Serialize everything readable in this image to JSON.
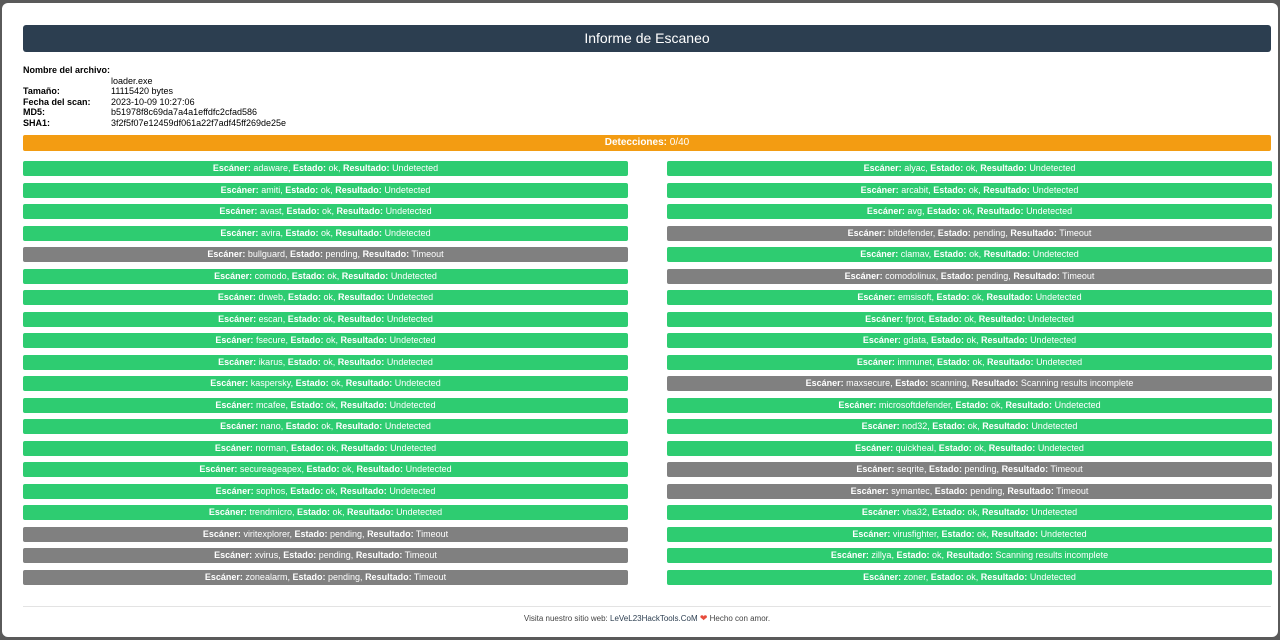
{
  "page": {
    "title": "Informe de Escaneo"
  },
  "file_info": [
    {
      "label": "Nombre del archivo:",
      "value": "loader.exe"
    },
    {
      "label": "Tamaño:",
      "value": "11115420 bytes"
    },
    {
      "label": "Fecha del scan:",
      "value": "2023-10-09 10:27:06"
    },
    {
      "label": "MD5:",
      "value": "b51978f8c69da7a4a1effdfc2cfad586"
    },
    {
      "label": "SHA1:",
      "value": "3f2f5f07e12459df061a22f7adf45ff269de25e"
    }
  ],
  "detections": {
    "label": "Detecciones:",
    "value": "0/40"
  },
  "result_labels": {
    "scanner": "Escáner:",
    "status": "Estado:",
    "result": "Resultado:"
  },
  "results_left": [
    {
      "scanner": "adaware",
      "status": "ok",
      "result": "Undetected"
    },
    {
      "scanner": "amiti",
      "status": "ok",
      "result": "Undetected"
    },
    {
      "scanner": "avast",
      "status": "ok",
      "result": "Undetected"
    },
    {
      "scanner": "avira",
      "status": "ok",
      "result": "Undetected"
    },
    {
      "scanner": "bullguard",
      "status": "pending",
      "result": "Timeout"
    },
    {
      "scanner": "comodo",
      "status": "ok",
      "result": "Undetected"
    },
    {
      "scanner": "drweb",
      "status": "ok",
      "result": "Undetected"
    },
    {
      "scanner": "escan",
      "status": "ok",
      "result": "Undetected"
    },
    {
      "scanner": "fsecure",
      "status": "ok",
      "result": "Undetected"
    },
    {
      "scanner": "ikarus",
      "status": "ok",
      "result": "Undetected"
    },
    {
      "scanner": "kaspersky",
      "status": "ok",
      "result": "Undetected"
    },
    {
      "scanner": "mcafee",
      "status": "ok",
      "result": "Undetected"
    },
    {
      "scanner": "nano",
      "status": "ok",
      "result": "Undetected"
    },
    {
      "scanner": "norman",
      "status": "ok",
      "result": "Undetected"
    },
    {
      "scanner": "secureageapex",
      "status": "ok",
      "result": "Undetected"
    },
    {
      "scanner": "sophos",
      "status": "ok",
      "result": "Undetected"
    },
    {
      "scanner": "trendmicro",
      "status": "ok",
      "result": "Undetected"
    },
    {
      "scanner": "viritexplorer",
      "status": "pending",
      "result": "Timeout"
    },
    {
      "scanner": "xvirus",
      "status": "pending",
      "result": "Timeout"
    },
    {
      "scanner": "zonealarm",
      "status": "pending",
      "result": "Timeout"
    }
  ],
  "results_right": [
    {
      "scanner": "alyac",
      "status": "ok",
      "result": "Undetected"
    },
    {
      "scanner": "arcabit",
      "status": "ok",
      "result": "Undetected"
    },
    {
      "scanner": "avg",
      "status": "ok",
      "result": "Undetected"
    },
    {
      "scanner": "bitdefender",
      "status": "pending",
      "result": "Timeout"
    },
    {
      "scanner": "clamav",
      "status": "ok",
      "result": "Undetected"
    },
    {
      "scanner": "comodolinux",
      "status": "pending",
      "result": "Timeout"
    },
    {
      "scanner": "emsisoft",
      "status": "ok",
      "result": "Undetected"
    },
    {
      "scanner": "fprot",
      "status": "ok",
      "result": "Undetected"
    },
    {
      "scanner": "gdata",
      "status": "ok",
      "result": "Undetected"
    },
    {
      "scanner": "immunet",
      "status": "ok",
      "result": "Undetected"
    },
    {
      "scanner": "maxsecure",
      "status": "scanning",
      "result": "Scanning results incomplete"
    },
    {
      "scanner": "microsoftdefender",
      "status": "ok",
      "result": "Undetected"
    },
    {
      "scanner": "nod32",
      "status": "ok",
      "result": "Undetected"
    },
    {
      "scanner": "quickheal",
      "status": "ok",
      "result": "Undetected"
    },
    {
      "scanner": "seqrite",
      "status": "pending",
      "result": "Timeout"
    },
    {
      "scanner": "symantec",
      "status": "pending",
      "result": "Timeout"
    },
    {
      "scanner": "vba32",
      "status": "ok",
      "result": "Undetected"
    },
    {
      "scanner": "virusfighter",
      "status": "ok",
      "result": "Undetected"
    },
    {
      "scanner": "zillya",
      "status": "ok",
      "result": "Scanning results incomplete"
    },
    {
      "scanner": "zoner",
      "status": "ok",
      "result": "Undetected"
    }
  ],
  "footer": {
    "prefix": "Visita nuestro sitio web:",
    "link": "LeVeL23HackTools.CoM",
    "suffix": "Hecho con amor."
  },
  "colors": {
    "ok": "#2ecc71",
    "not_ok": "#808080",
    "header": "#2c3e50",
    "detections": "#f39c12"
  }
}
